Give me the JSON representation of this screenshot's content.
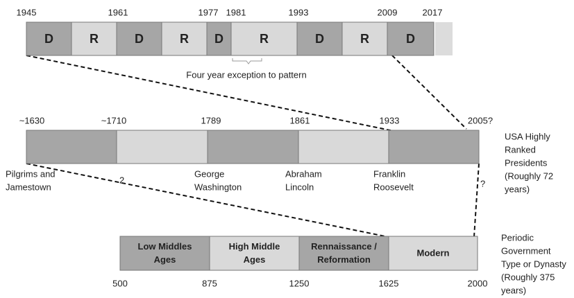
{
  "top_timeline": {
    "years": [
      "1945",
      "1961",
      "1977",
      "1981",
      "1993",
      "2009",
      "2017"
    ],
    "segments": [
      "D",
      "R",
      "D",
      "R",
      "D",
      "R",
      "D",
      "R",
      "D"
    ],
    "annotation": "Four year exception to pattern"
  },
  "middle_timeline": {
    "years": [
      "~1630",
      "~1710",
      "1789",
      "1861",
      "1933",
      "2005?"
    ],
    "figures": [
      [
        "Pilgrims and",
        "Jamestown"
      ],
      [
        "George",
        "Washington"
      ],
      [
        "Abraham",
        "Lincoln"
      ],
      [
        "Franklin",
        "Roosevelt"
      ]
    ],
    "marks": [
      "2",
      "?"
    ],
    "caption": [
      "USA Highly",
      "Ranked",
      "Presidents",
      "(Roughly 72",
      "years)"
    ]
  },
  "bottom_timeline": {
    "segments": [
      [
        "Low Middles",
        "Ages"
      ],
      [
        "High Middle",
        "Ages"
      ],
      [
        "Rennaissance /",
        "Reformation"
      ],
      [
        "Modern"
      ]
    ],
    "years": [
      "500",
      "875",
      "1250",
      "1625",
      "2000"
    ],
    "caption": [
      "Periodic",
      "Government",
      "Type or Dynasty",
      "(Roughly 375",
      "years)"
    ]
  }
}
